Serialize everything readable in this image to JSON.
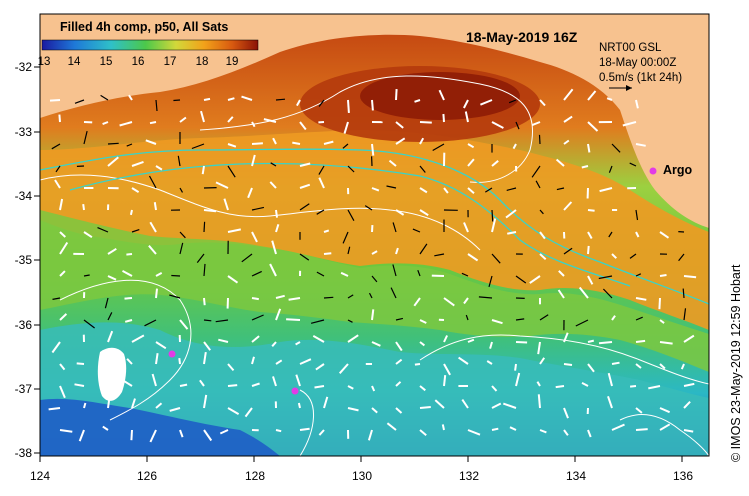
{
  "title": "18-May-2019 16Z",
  "colorbar": {
    "title": "Filled 4h comp, p50, All Sats",
    "ticks": [
      "13",
      "14",
      "15",
      "16",
      "17",
      "18",
      "19"
    ]
  },
  "info": {
    "line1": "NRT00 GSL",
    "line2": "18-May 00:00Z",
    "line3": "0.5m/s (1kt 24h)"
  },
  "argo_label": "Argo",
  "credit": "© IMOS 23-May-2019 12:59 Hobart",
  "axes": {
    "x_ticks": [
      "124",
      "126",
      "128",
      "130",
      "132",
      "134",
      "136"
    ],
    "y_ticks": [
      "-32",
      "-33",
      "-34",
      "-35",
      "-36",
      "-37",
      "-38"
    ]
  },
  "colors": {
    "land": "#f7c28f",
    "argo": "#e23be6",
    "current_vector": "#ffffff",
    "contour": "#ffffff",
    "altimetry_contour": "#39d4c8"
  }
}
